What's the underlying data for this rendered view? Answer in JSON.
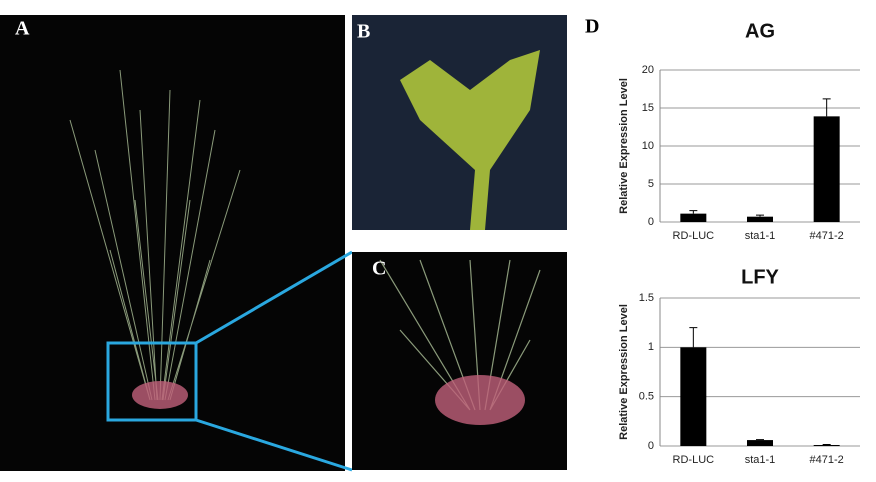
{
  "panels": [
    "A",
    "B",
    "C",
    "D"
  ],
  "chart_data": [
    {
      "type": "bar",
      "title": "AG",
      "y_label": "Relative Expression Level",
      "categories": [
        "RD-LUC",
        "sta1-1",
        "#471-2"
      ],
      "values": [
        1.1,
        0.7,
        13.9
      ],
      "errors": [
        0.4,
        0.2,
        2.3
      ],
      "color": "#000000",
      "ylim": [
        0,
        20
      ],
      "yticks": [
        0,
        5,
        10,
        15,
        20
      ],
      "grid": true
    },
    {
      "type": "bar",
      "title": "LFY",
      "y_label": "Relative Expression Level",
      "categories": [
        "RD-LUC",
        "sta1-1",
        "#471-2"
      ],
      "values": [
        1.0,
        0.06,
        0.01
      ],
      "errors": [
        0.2,
        0.005,
        0.005
      ],
      "color": "#000000",
      "ylim": [
        0,
        1.5
      ],
      "yticks": [
        0,
        0.5,
        1,
        1.5
      ],
      "grid": true
    }
  ]
}
